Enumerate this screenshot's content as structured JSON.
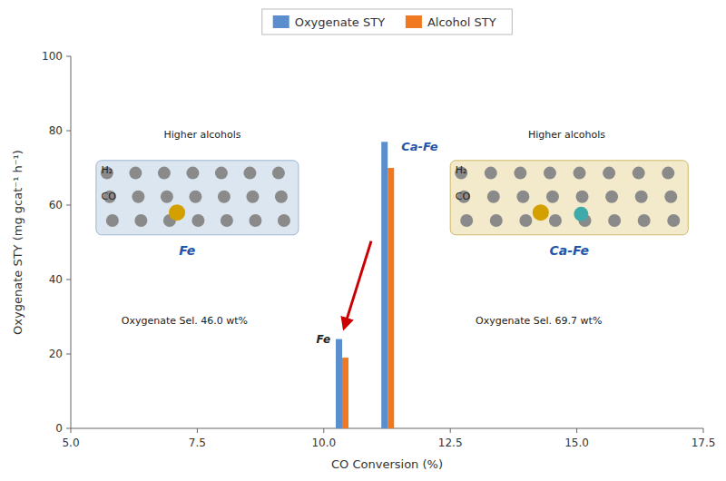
{
  "chart_data": {
    "type": "bar",
    "x": [
      10.3,
      11.2
    ],
    "series": [
      {
        "name": "Oxygenate STY",
        "color": "#5B8ECC",
        "values": [
          24,
          77
        ]
      },
      {
        "name": "Alcohol STY",
        "color": "#F07820",
        "values": [
          19,
          70
        ]
      }
    ],
    "xlim": [
      5.0,
      17.5
    ],
    "ylim": [
      0,
      100
    ],
    "xticks": [
      {
        "value": 5.0,
        "label": "5.0"
      },
      7.5,
      {
        "value": 10.0,
        "label": "10.0"
      },
      12.5,
      {
        "value": 15.0,
        "label": "15.0"
      },
      17.5
    ],
    "yticks": [
      0,
      20,
      40,
      60,
      80,
      100
    ],
    "xlabel": "CO Conversion (%)",
    "ylabel": "Oxygenate STY (mg gcat⁻¹ h⁻¹)",
    "annotations": [
      "Fe",
      "Ca-Fe",
      "Oxygenate Sel. 46.0 wt%",
      "Oxygenate Sel. 69.7 wt%",
      "Fe",
      "H₂",
      "CO",
      "Higher alcohols",
      "Ca-Fe",
      "H₂",
      "CO",
      "Higher alcohols"
    ],
    "legend": "top",
    "grid": false
  }
}
